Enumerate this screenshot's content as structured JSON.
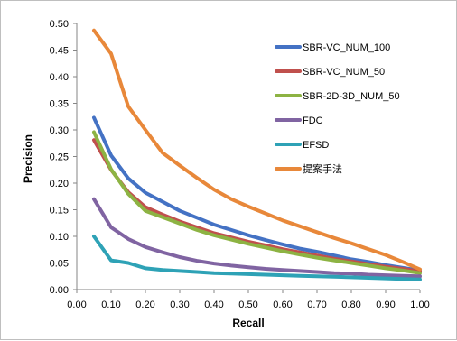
{
  "chart_data": {
    "type": "line",
    "title": "",
    "xlabel": "Recall",
    "ylabel": "Precision",
    "xlim": [
      0.0,
      1.0
    ],
    "ylim": [
      0.0,
      0.5
    ],
    "x_ticks": [
      "0.00",
      "0.10",
      "0.20",
      "0.30",
      "0.40",
      "0.50",
      "0.60",
      "0.70",
      "0.80",
      "0.90",
      "1.00"
    ],
    "y_ticks": [
      "0.00",
      "0.05",
      "0.10",
      "0.15",
      "0.20",
      "0.25",
      "0.30",
      "0.35",
      "0.40",
      "0.45",
      "0.50"
    ],
    "grid": false,
    "legend_position": "right",
    "x": [
      0.05,
      0.1,
      0.15,
      0.2,
      0.25,
      0.3,
      0.35,
      0.4,
      0.45,
      0.5,
      0.55,
      0.6,
      0.65,
      0.7,
      0.75,
      0.8,
      0.85,
      0.9,
      0.95,
      1.0
    ],
    "series": [
      {
        "name": "SBR-VC_NUM_100",
        "color": "#4472C4",
        "values": [
          0.323,
          0.252,
          0.209,
          0.182,
          0.165,
          0.148,
          0.135,
          0.122,
          0.112,
          0.102,
          0.093,
          0.085,
          0.077,
          0.071,
          0.064,
          0.057,
          0.052,
          0.046,
          0.041,
          0.036
        ]
      },
      {
        "name": "SBR-VC_NUM_50",
        "color": "#C0504D",
        "values": [
          0.281,
          0.225,
          0.183,
          0.155,
          0.141,
          0.128,
          0.117,
          0.106,
          0.098,
          0.09,
          0.083,
          0.076,
          0.07,
          0.064,
          0.058,
          0.053,
          0.048,
          0.043,
          0.039,
          0.034
        ]
      },
      {
        "name": "SBR-2D-3D_NUM_50",
        "color": "#8DB343",
        "values": [
          0.296,
          0.226,
          0.18,
          0.148,
          0.136,
          0.124,
          0.112,
          0.102,
          0.094,
          0.086,
          0.079,
          0.072,
          0.066,
          0.06,
          0.055,
          0.05,
          0.045,
          0.04,
          0.036,
          0.031
        ]
      },
      {
        "name": "FDC",
        "color": "#8064A2",
        "values": [
          0.17,
          0.117,
          0.095,
          0.08,
          0.07,
          0.061,
          0.054,
          0.049,
          0.045,
          0.042,
          0.039,
          0.037,
          0.035,
          0.033,
          0.031,
          0.03,
          0.028,
          0.027,
          0.026,
          0.025
        ]
      },
      {
        "name": "EFSD",
        "color": "#2EA2B6",
        "values": [
          0.1,
          0.055,
          0.05,
          0.04,
          0.037,
          0.035,
          0.033,
          0.031,
          0.03,
          0.029,
          0.028,
          0.027,
          0.026,
          0.025,
          0.024,
          0.023,
          0.022,
          0.021,
          0.02,
          0.019
        ]
      },
      {
        "name": "提案手法",
        "color": "#E8883A",
        "values": [
          0.487,
          0.443,
          0.344,
          0.3,
          0.257,
          0.233,
          0.21,
          0.188,
          0.17,
          0.156,
          0.143,
          0.13,
          0.119,
          0.108,
          0.097,
          0.087,
          0.076,
          0.065,
          0.052,
          0.038
        ]
      }
    ]
  }
}
